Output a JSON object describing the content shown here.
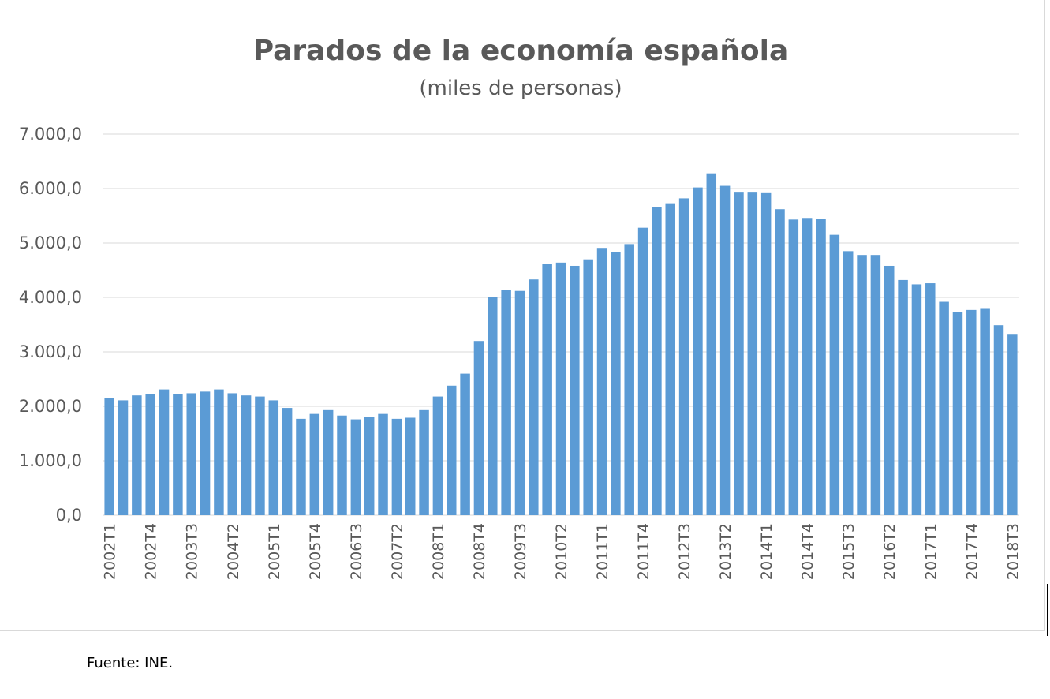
{
  "source_note": "Fuente: INE.",
  "chart_data": {
    "type": "bar",
    "title": "Parados de la economía española",
    "subtitle": "(miles de personas)",
    "xlabel": "",
    "ylabel": "",
    "ylim": [
      0,
      7000
    ],
    "yticks": [
      0,
      1000,
      2000,
      3000,
      4000,
      5000,
      6000,
      7000
    ],
    "ytick_labels": [
      "0,0",
      "1.000,0",
      "2.000,0",
      "3.000,0",
      "4.000,0",
      "5.000,0",
      "6.000,0",
      "7.000,0"
    ],
    "grid": true,
    "bar_color": "#5b9bd5",
    "categories": [
      "2002T1",
      "2002T2",
      "2002T3",
      "2002T4",
      "2003T1",
      "2003T2",
      "2003T3",
      "2003T4",
      "2004T1",
      "2004T2",
      "2004T3",
      "2004T4",
      "2005T1",
      "2005T2",
      "2005T3",
      "2005T4",
      "2006T1",
      "2006T2",
      "2006T3",
      "2006T4",
      "2007T1",
      "2007T2",
      "2007T3",
      "2007T4",
      "2008T1",
      "2008T2",
      "2008T3",
      "2008T4",
      "2009T1",
      "2009T2",
      "2009T3",
      "2009T4",
      "2010T1",
      "2010T2",
      "2010T3",
      "2010T4",
      "2011T1",
      "2011T2",
      "2011T3",
      "2011T4",
      "2012T1",
      "2012T2",
      "2012T3",
      "2012T4",
      "2013T1",
      "2013T2",
      "2013T3",
      "2013T4",
      "2014T1",
      "2014T2",
      "2014T3",
      "2014T4",
      "2015T1",
      "2015T2",
      "2015T3",
      "2015T4",
      "2016T1",
      "2016T2",
      "2016T3",
      "2016T4",
      "2017T1",
      "2017T2",
      "2017T3",
      "2017T4",
      "2018T1",
      "2018T2",
      "2018T3"
    ],
    "visible_xtick_labels": [
      "2002T1",
      "2002T4",
      "2003T3",
      "2004T2",
      "2005T1",
      "2005T4",
      "2006T3",
      "2007T2",
      "2008T1",
      "2008T4",
      "2009T3",
      "2010T2",
      "2011T1",
      "2011T4",
      "2012T3",
      "2013T2",
      "2014T1",
      "2014T4",
      "2015T3",
      "2016T2",
      "2017T1",
      "2017T4",
      "2018T3"
    ],
    "values": [
      2150,
      2110,
      2200,
      2230,
      2310,
      2220,
      2240,
      2270,
      2310,
      2240,
      2200,
      2180,
      2110,
      1970,
      1770,
      1860,
      1930,
      1830,
      1760,
      1810,
      1860,
      1770,
      1790,
      1930,
      2180,
      2380,
      2600,
      3200,
      4010,
      4140,
      4120,
      4330,
      4610,
      4640,
      4580,
      4700,
      4910,
      4840,
      4980,
      5280,
      5660,
      5730,
      5820,
      6020,
      6280,
      6050,
      5940,
      5940,
      5930,
      5620,
      5430,
      5460,
      5440,
      5150,
      4850,
      4780,
      4780,
      4580,
      4320,
      4240,
      4260,
      3920,
      3730,
      3770,
      3790,
      3490,
      3330
    ]
  }
}
